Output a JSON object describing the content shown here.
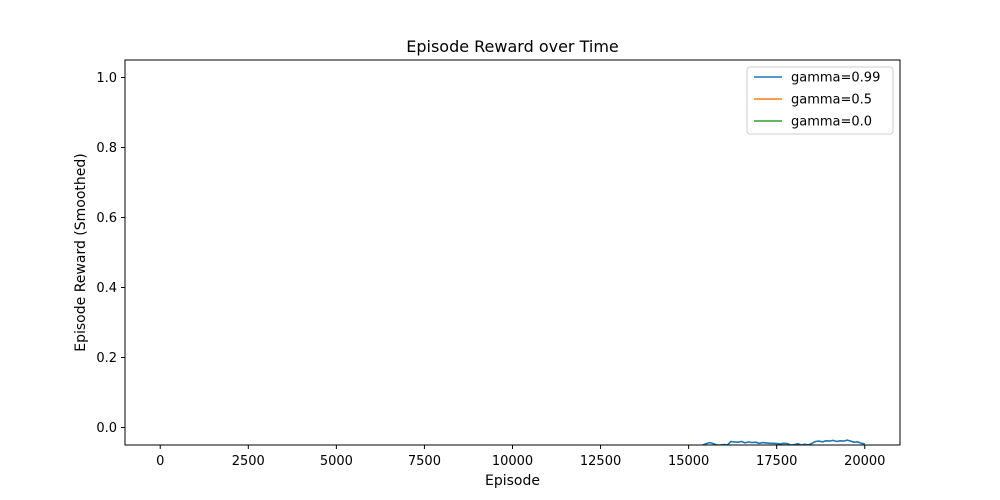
{
  "chart_data": {
    "type": "line",
    "title": "Episode Reward over Time",
    "xlabel": "Episode",
    "ylabel": "Episode Reward (Smoothed)",
    "xlim": [
      -1000,
      21000
    ],
    "ylim": [
      -0.05,
      1.05
    ],
    "xticks": [
      0,
      2500,
      5000,
      7500,
      10000,
      12500,
      15000,
      17500,
      20000
    ],
    "xtick_labels": [
      "0",
      "2500",
      "5000",
      "7500",
      "10000",
      "12500",
      "15000",
      "17500",
      "20000"
    ],
    "yticks": [
      0.0,
      0.2,
      0.4,
      0.6,
      0.8,
      1.0
    ],
    "ytick_labels": [
      "0.0",
      "0.2",
      "0.4",
      "0.6",
      "0.8",
      "1.0"
    ],
    "grid": false,
    "legend_position": "top-right",
    "series": [
      {
        "name": "gamma=0.99",
        "color": "#1f77b4",
        "x": [
          15400,
          15500,
          15600,
          15700,
          15800,
          15900,
          16000,
          16100,
          16200,
          16300,
          16400,
          16500,
          16600,
          16700,
          16800,
          16900,
          17000,
          17100,
          17200,
          17300,
          17400,
          17500,
          17600,
          17700,
          17800,
          17900,
          18000,
          18100,
          18200,
          18300,
          18400,
          18500,
          18600,
          18700,
          18800,
          18900,
          19000,
          19100,
          19200,
          19300,
          19400,
          19500,
          19600,
          19700,
          19800,
          19900,
          20000
        ],
        "y": [
          -0.05,
          -0.046,
          -0.043,
          -0.046,
          -0.05,
          -0.05,
          -0.049,
          -0.05,
          -0.04,
          -0.041,
          -0.042,
          -0.04,
          -0.044,
          -0.041,
          -0.043,
          -0.042,
          -0.045,
          -0.043,
          -0.044,
          -0.045,
          -0.045,
          -0.046,
          -0.047,
          -0.045,
          -0.046,
          -0.05,
          -0.049,
          -0.046,
          -0.05,
          -0.048,
          -0.05,
          -0.045,
          -0.04,
          -0.039,
          -0.041,
          -0.038,
          -0.039,
          -0.037,
          -0.04,
          -0.038,
          -0.039,
          -0.036,
          -0.039,
          -0.042,
          -0.041,
          -0.045,
          -0.047
        ]
      },
      {
        "name": "gamma=0.5",
        "color": "#ff7f0e",
        "x": [],
        "y": []
      },
      {
        "name": "gamma=0.0",
        "color": "#2ca02c",
        "x": [],
        "y": []
      }
    ]
  }
}
